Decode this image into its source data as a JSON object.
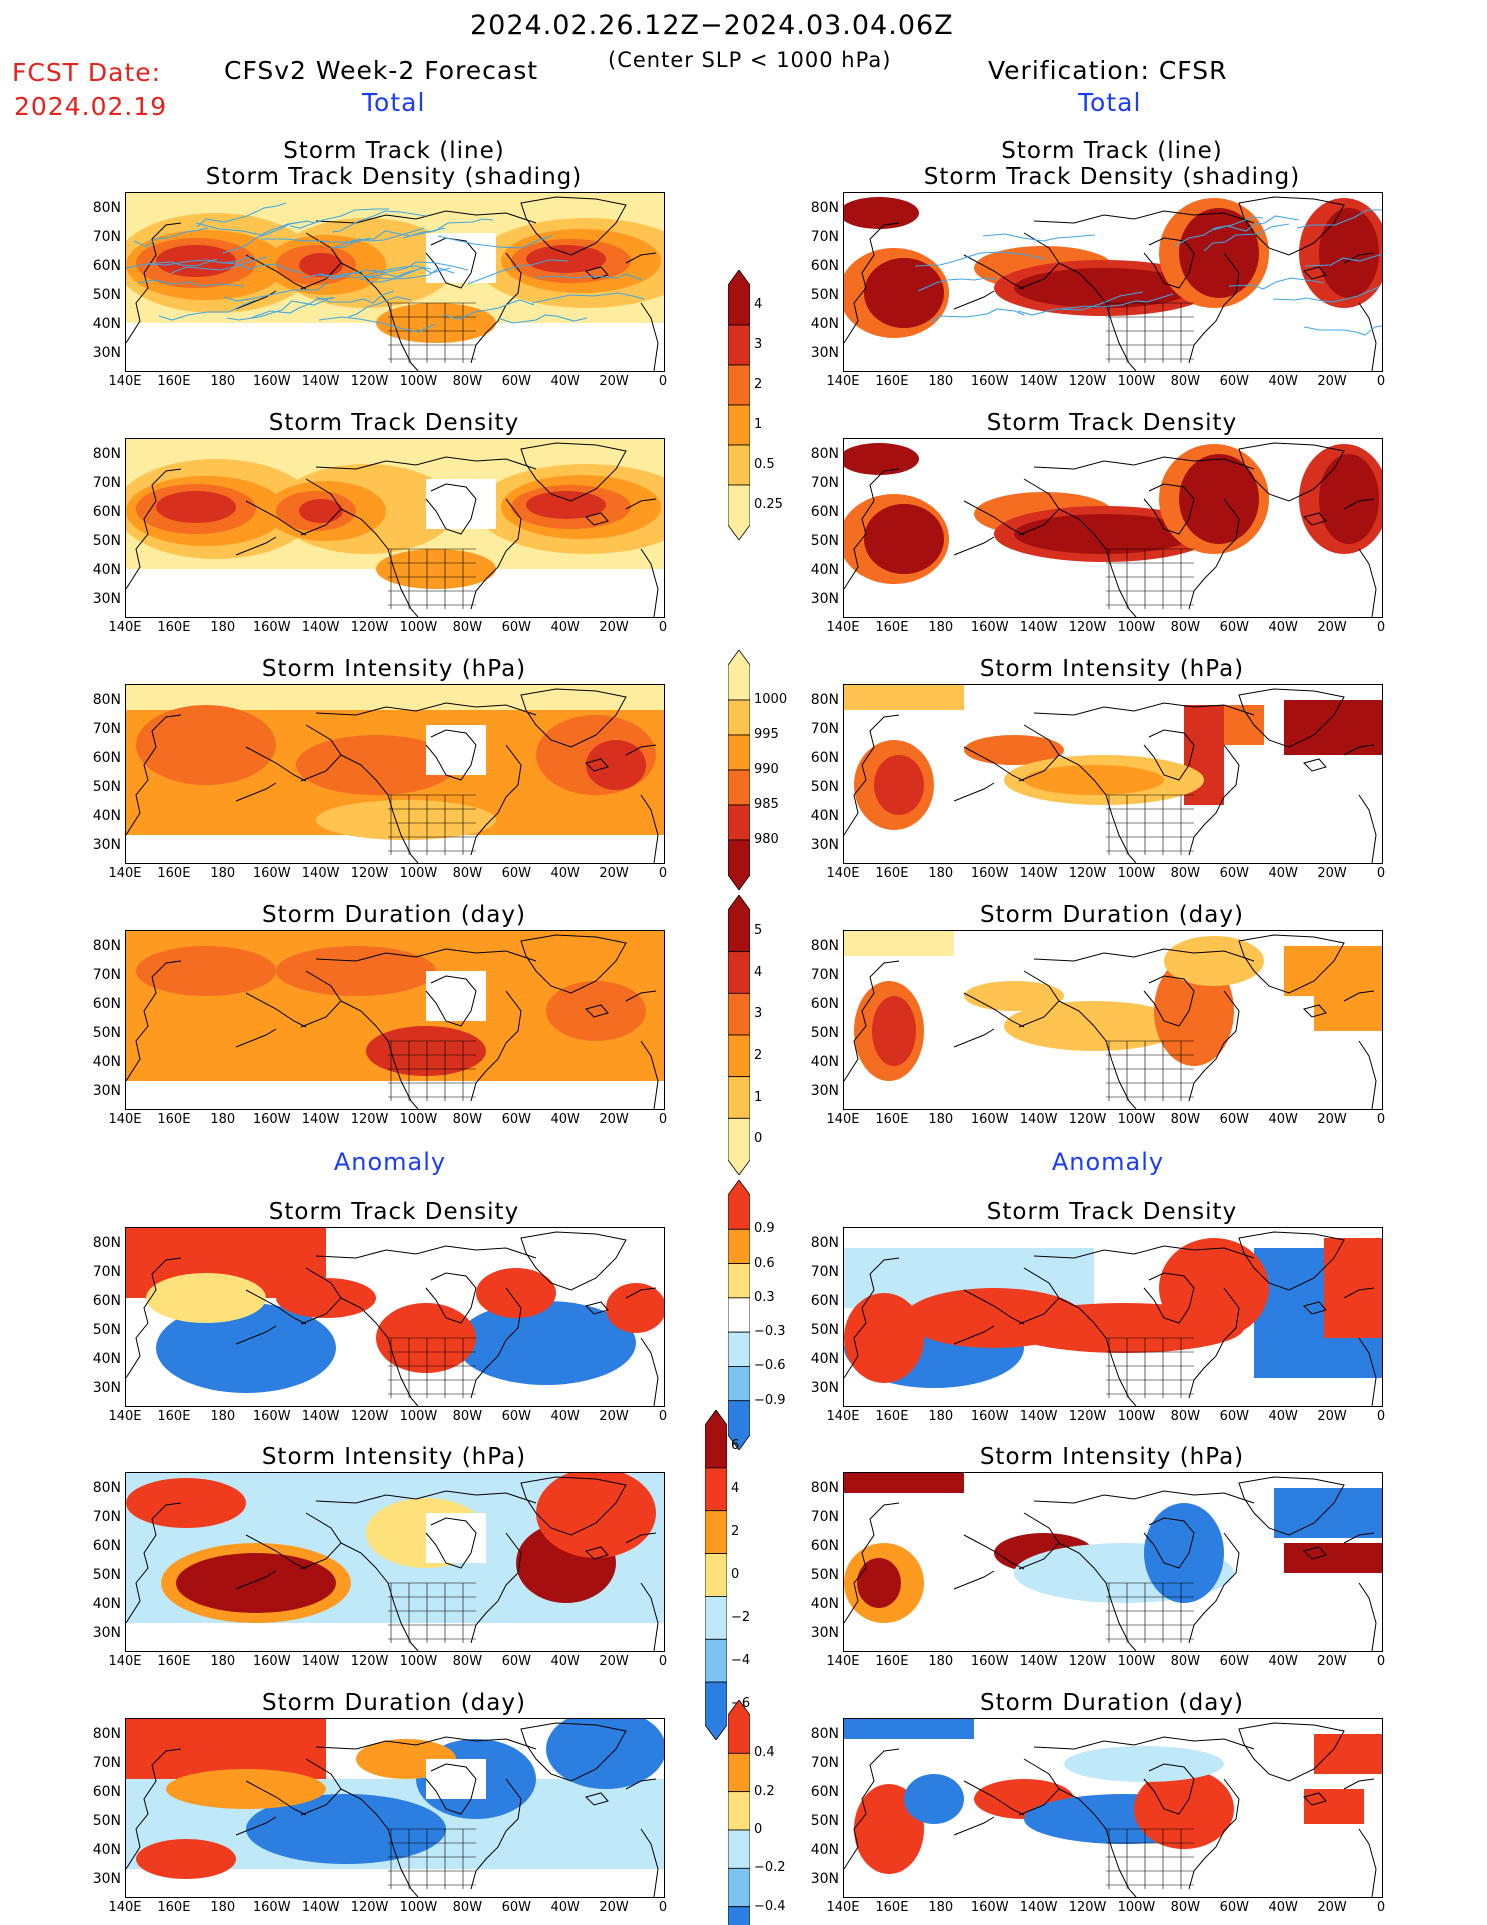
{
  "header": {
    "period": "2024.02.26.12Z−2024.03.04.06Z",
    "criteria": "(Center SLP < 1000 hPa)",
    "fcst_date_label": "FCST Date:",
    "fcst_date_value": "2024.02.19",
    "left_title": "CFSv2 Week-2 Forecast",
    "right_title": "Verification: CFSR",
    "left_total": "Total",
    "right_total": "Total",
    "left_anomaly": "Anomaly",
    "right_anomaly": "Anomaly"
  },
  "panel_titles": {
    "track_line_1": "Storm Track (line)",
    "track_line_2": "Storm Track Density (shading)",
    "density": "Storm Track Density",
    "intensity": "Storm Intensity (hPa)",
    "duration": "Storm Duration (day)"
  },
  "axes": {
    "lat_labels": [
      "80N",
      "70N",
      "60N",
      "50N",
      "40N",
      "30N"
    ],
    "lon_labels": [
      "140E",
      "160E",
      "180",
      "160W",
      "140W",
      "120W",
      "100W",
      "80W",
      "60W",
      "40W",
      "20W",
      "0"
    ]
  },
  "colorbars": {
    "density_total": {
      "labels": [
        "4",
        "3",
        "2",
        "1",
        "0.5",
        "0.25"
      ],
      "colors": [
        "#a50f0f",
        "#d7301f",
        "#f46d20",
        "#fd9a1f",
        "#fec44f",
        "#feed9e"
      ]
    },
    "intensity_total": {
      "labels": [
        "1000",
        "995",
        "990",
        "985",
        "980"
      ],
      "colors": [
        "#feed9e",
        "#fec44f",
        "#fd9a1f",
        "#f46d20",
        "#d7301f",
        "#a50f0f"
      ]
    },
    "duration_total": {
      "labels": [
        "5",
        "4",
        "3",
        "2",
        "1",
        "0"
      ],
      "colors": [
        "#a50f0f",
        "#d7301f",
        "#f46d20",
        "#fd9a1f",
        "#fec44f",
        "#feed9e"
      ]
    },
    "density_anom": {
      "labels": [
        "0.9",
        "0.6",
        "0.3",
        "−0.3",
        "−0.6",
        "−0.9"
      ],
      "colors": [
        "#f03c1e",
        "#fd9a1f",
        "#fee17a",
        "#ffffff",
        "#bfe8f8",
        "#7cc3f2",
        "#2c7fe0"
      ]
    },
    "intensity_anom": {
      "labels": [
        "6",
        "4",
        "2",
        "0",
        "−2",
        "−4",
        "−6"
      ],
      "colors": [
        "#a50f0f",
        "#f03c1e",
        "#fd9a1f",
        "#fee17a",
        "#bfe8f8",
        "#7cc3f2",
        "#2c7fe0"
      ]
    },
    "duration_anom": {
      "labels": [
        "0.4",
        "0.2",
        "0",
        "−0.2",
        "−0.4"
      ],
      "colors": [
        "#f03c1e",
        "#fd9a1f",
        "#fee17a",
        "#bfe8f8",
        "#7cc3f2",
        "#2c7fe0"
      ]
    }
  }
}
